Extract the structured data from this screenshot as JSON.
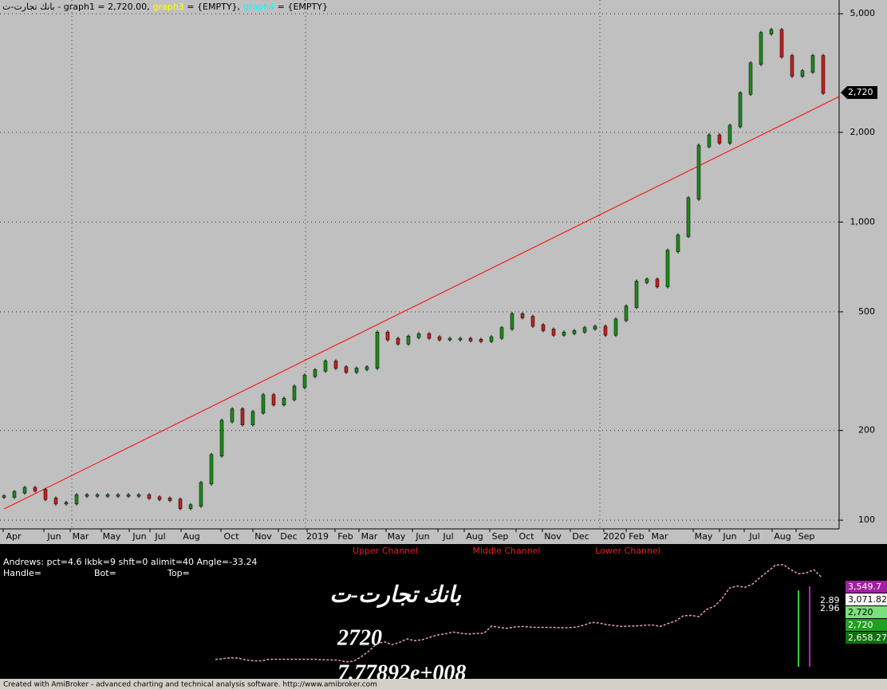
{
  "header": {
    "symbol": "بانك تجارت-ت",
    "graph1": " - graph1 = 2,720.00,",
    "graph3": "graph3",
    "graph3_value": " = {EMPTY},",
    "graph4": "graph4",
    "graph4_value": " = {EMPTY}"
  },
  "chart_data": {
    "type": "candle",
    "log_scale": true,
    "grid": true,
    "ylim": [
      93.5,
      5560
    ],
    "yticks": [
      100,
      200,
      500,
      {
        "value": 1000,
        "label": "1,000"
      },
      {
        "value": 2000,
        "label": "2,000"
      },
      {
        "value": 5000,
        "label": "5,000"
      }
    ],
    "x_labels": [
      "Apr",
      "Jun",
      "Mar",
      "May",
      "Jun",
      "Jul",
      "Aug",
      "Oct",
      "Nov",
      "Dec",
      "2019",
      "Feb",
      "Mar",
      "May",
      "Jun",
      "Jul",
      "Aug",
      "Sep",
      "Oct",
      "Nov",
      "Dec",
      "2020",
      "Feb",
      "Mar",
      "May",
      "Jun",
      "Jul",
      "Aug",
      "Sep"
    ],
    "up_color": "#1a8a1a",
    "down_color": "#c02020",
    "values": [
      120,
      124,
      128,
      126,
      118,
      114,
      114,
      121,
      121,
      121,
      121,
      121,
      121,
      121,
      119,
      118,
      117,
      110,
      112,
      133,
      165,
      215,
      235,
      210,
      230,
      262,
      245,
      255,
      280,
      305,
      318,
      340,
      325,
      315,
      322,
      325,
      425,
      405,
      392,
      412,
      420,
      410,
      405,
      405,
      405,
      402,
      400,
      410,
      440,
      490,
      480,
      450,
      435,
      420,
      425,
      430,
      440,
      445,
      420,
      470,
      520,
      630,
      640,
      610,
      800,
      900,
      1200,
      1800,
      1950,
      1850,
      2100,
      2700,
      3400,
      4300,
      4400,
      3600,
      3100,
      3200,
      3600,
      2720
    ],
    "last_label": "2,720",
    "trendline": {
      "color": "#ff0000",
      "values": [
        109,
        2636
      ]
    }
  },
  "lower_pane": {
    "formula": "Andrews: pct=4.6 lkbk=9 shft=0 alimit=40 Angle=-33.24",
    "handle": "Handle=",
    "bot": "Bot=",
    "top": "Top=",
    "channels": [
      "Upper Channel",
      "Middle Channel",
      "Lower Channel"
    ],
    "big_texts": [
      "بانك تجارت-ت",
      "2720",
      "7.77892e+008"
    ],
    "right_labels": [
      "3,549.7",
      "3,071.82",
      "2,720",
      "2,720",
      "2,658.27"
    ],
    "small_labels": [
      "2.89",
      "2.96"
    ]
  },
  "footer": "Created with AmiBroker - advanced charting and technical analysis software. http://www.amibroker.com"
}
